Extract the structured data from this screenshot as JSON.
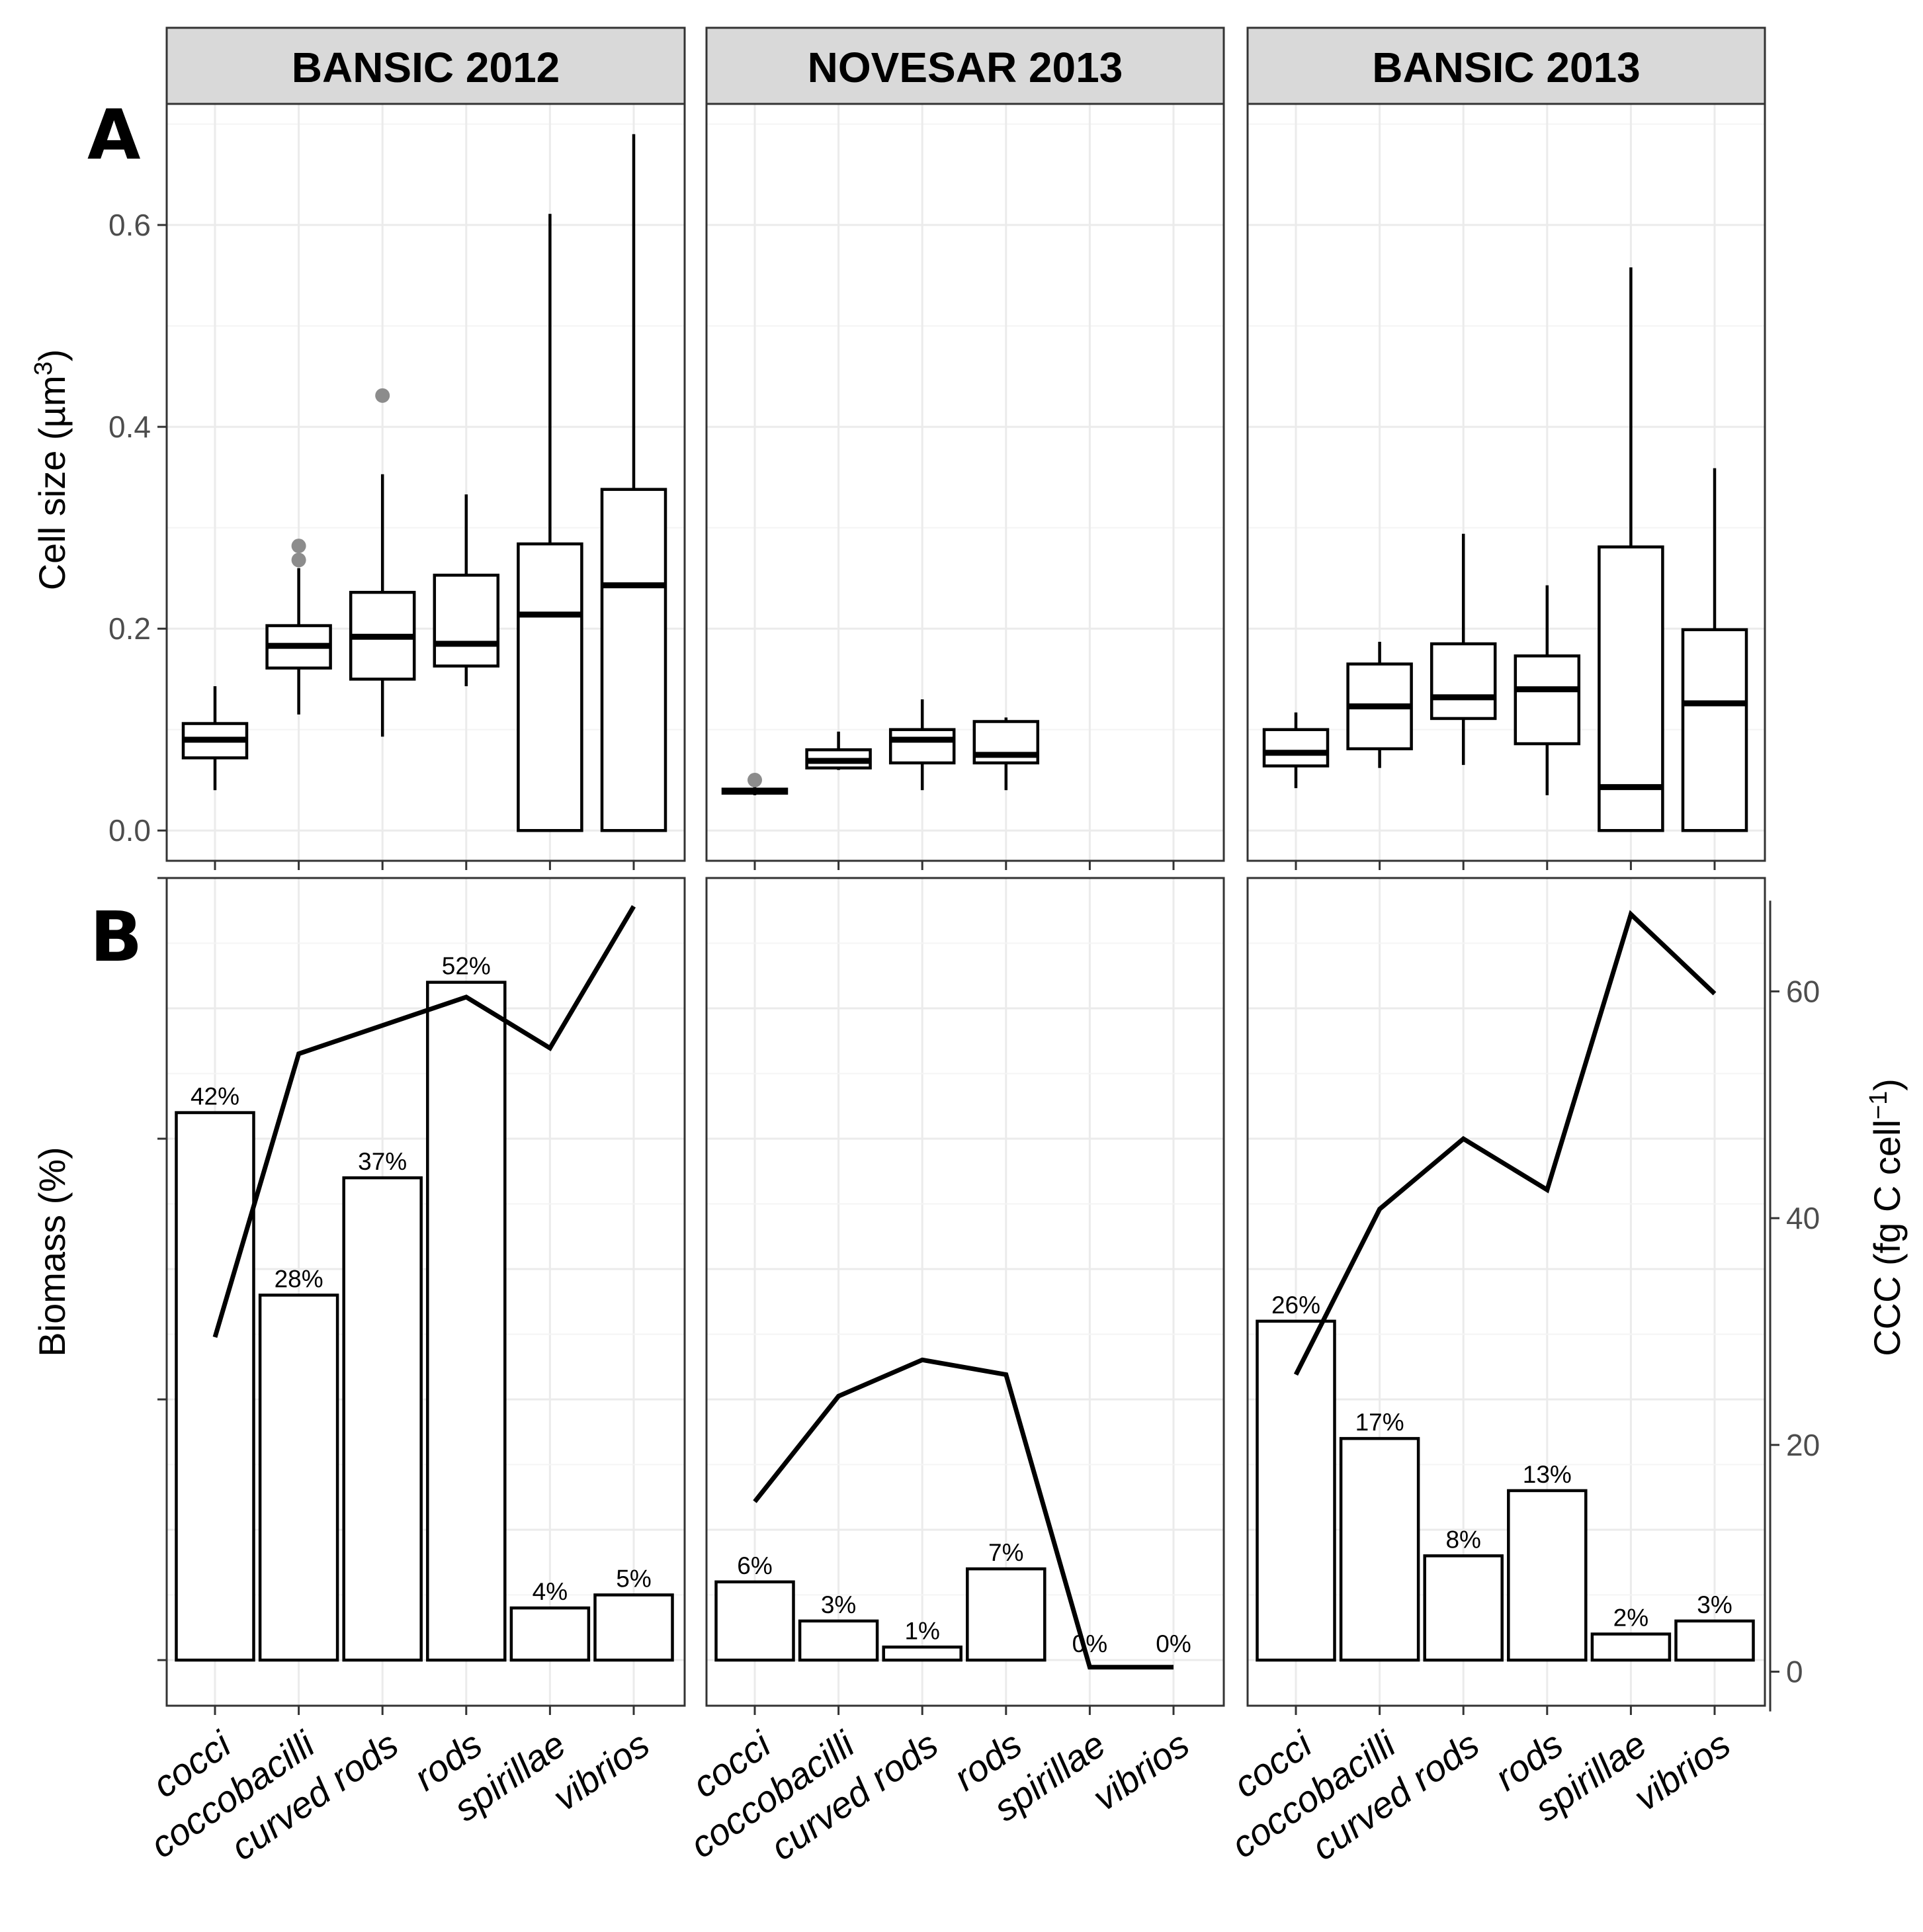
{
  "chart_data": {
    "type": "faceted box plot + bar/line",
    "panel_tags": {
      "A": "A",
      "B": "B"
    },
    "facets": [
      "BANSIC  2012",
      "NOVESAR  2013",
      "BANSIC  2013"
    ],
    "categories": [
      "cocci",
      "coccobacilli",
      "curved  rods",
      "rods",
      "spirillae",
      "vibrios"
    ],
    "top": {
      "ylabel": "Cell size (µm",
      "ylabel_sup": "3",
      "ylabel_close": ")",
      "ylim": [
        -0.03,
        0.72
      ],
      "yticks": [
        0.0,
        0.2,
        0.4,
        0.6
      ],
      "ytick_labels": [
        "0.0",
        "0.2",
        "0.4",
        "0.6"
      ],
      "boxes": [
        [
          {
            "min": 0.04,
            "q1": 0.072,
            "median": 0.09,
            "q3": 0.106,
            "max": 0.143,
            "outliers": []
          },
          {
            "min": 0.115,
            "q1": 0.161,
            "median": 0.183,
            "q3": 0.203,
            "max": 0.26,
            "outliers": [
              0.268,
              0.282
            ]
          },
          {
            "min": 0.093,
            "q1": 0.15,
            "median": 0.192,
            "q3": 0.236,
            "max": 0.353,
            "outliers": [
              0.431
            ]
          },
          {
            "min": 0.143,
            "q1": 0.163,
            "median": 0.185,
            "q3": 0.253,
            "max": 0.333,
            "outliers": []
          },
          {
            "min": 0.0,
            "q1": 0.0,
            "median": 0.214,
            "q3": 0.284,
            "max": 0.611,
            "outliers": []
          },
          {
            "min": 0.0,
            "q1": 0.0,
            "median": 0.243,
            "q3": 0.338,
            "max": 0.69,
            "outliers": []
          }
        ],
        [
          {
            "min": 0.035,
            "q1": 0.037,
            "median": 0.039,
            "q3": 0.041,
            "max": 0.045,
            "outliers": [
              0.05
            ]
          },
          {
            "min": 0.06,
            "q1": 0.062,
            "median": 0.069,
            "q3": 0.08,
            "max": 0.098,
            "outliers": []
          },
          {
            "min": 0.04,
            "q1": 0.067,
            "median": 0.09,
            "q3": 0.1,
            "max": 0.13,
            "outliers": []
          },
          {
            "min": 0.04,
            "q1": 0.067,
            "median": 0.075,
            "q3": 0.108,
            "max": 0.112,
            "outliers": []
          },
          null,
          null
        ],
        [
          {
            "min": 0.042,
            "q1": 0.064,
            "median": 0.077,
            "q3": 0.1,
            "max": 0.117,
            "outliers": []
          },
          {
            "min": 0.062,
            "q1": 0.081,
            "median": 0.123,
            "q3": 0.165,
            "max": 0.187,
            "outliers": []
          },
          {
            "min": 0.065,
            "q1": 0.111,
            "median": 0.132,
            "q3": 0.185,
            "max": 0.294,
            "outliers": []
          },
          {
            "min": 0.035,
            "q1": 0.086,
            "median": 0.14,
            "q3": 0.173,
            "max": 0.243,
            "outliers": []
          },
          {
            "min": 0.0,
            "q1": 0.0,
            "median": 0.043,
            "q3": 0.281,
            "max": 0.558,
            "outliers": []
          },
          {
            "min": 0.0,
            "q1": 0.0,
            "median": 0.126,
            "q3": 0.199,
            "max": 0.359,
            "outliers": []
          }
        ]
      ]
    },
    "bottom": {
      "ylabel_left": "Biomass (%)",
      "biomass_ylim": [
        -3.5,
        60
      ],
      "biomass_pct": [
        [
          42,
          28,
          37,
          52,
          4,
          5
        ],
        [
          6,
          3,
          1,
          7,
          0,
          0
        ],
        [
          26,
          17,
          8,
          13,
          2,
          3
        ]
      ],
      "biomass_labels": [
        [
          "42%",
          "28%",
          "37%",
          "52%",
          "4%",
          "5%"
        ],
        [
          "6%",
          "3%",
          "1%",
          "7%",
          "0%",
          "0%"
        ],
        [
          "26%",
          "17%",
          "8%",
          "13%",
          "2%",
          "3%"
        ]
      ],
      "ylabel_right": "CCC (fg C cell",
      "ylabel_right_sup": "−1",
      "ylabel_right_close": ")",
      "ccc_ylim": [
        -3,
        70
      ],
      "ccc_yticks": [
        0,
        20,
        40,
        60
      ],
      "ccc_ytick_labels": [
        "0",
        "20",
        "40",
        "60"
      ],
      "ccc": [
        [
          29.5,
          54.5,
          57,
          59.5,
          55,
          67.5
        ],
        [
          15,
          24.3,
          27.5,
          26.2,
          0.4,
          0.4
        ],
        [
          26.2,
          40.8,
          47,
          42.5,
          66.8,
          59.8
        ]
      ]
    }
  }
}
